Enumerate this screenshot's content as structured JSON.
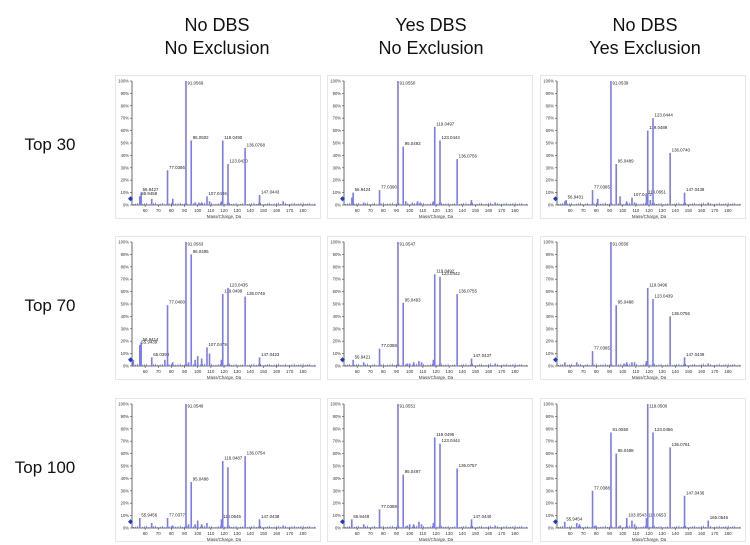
{
  "columns": [
    {
      "line1": "No DBS",
      "line2": "No Exclusion"
    },
    {
      "line1": "Yes DBS",
      "line2": "No Exclusion"
    },
    {
      "line1": "No DBS",
      "line2": "Yes Exclusion"
    }
  ],
  "rows": [
    {
      "label": "Top 30"
    },
    {
      "label": "Top 70"
    },
    {
      "label": "Top 100"
    }
  ],
  "colors": {
    "peak": "#7b7bf0",
    "axis": "#444444",
    "marker": "#1a3cc8"
  },
  "chart_data": [
    {
      "type": "bar",
      "row": "Top 30",
      "column": "No DBS / No Exclusion",
      "xlabel": "Mass/Charge, Da",
      "ylabel": "",
      "xlim": [
        50,
        190
      ],
      "ylim": [
        0,
        100
      ],
      "xticks": [
        60,
        70,
        80,
        90,
        100,
        110,
        120,
        130,
        140,
        150,
        160,
        170,
        180
      ],
      "yticks": [
        "0%",
        "10%",
        "20%",
        "30%",
        "40%",
        "50%",
        "60%",
        "70%",
        "80%",
        "90%",
        "100%"
      ],
      "peaks": [
        {
          "mz": 56.9427,
          "intensity": 10,
          "label": "56.9427"
        },
        {
          "mz": 55.9458,
          "intensity": 7,
          "label": "55.9458"
        },
        {
          "mz": 65.0,
          "intensity": 5
        },
        {
          "mz": 77.0386,
          "intensity": 28,
          "label": "77.0386"
        },
        {
          "mz": 81.0,
          "intensity": 5
        },
        {
          "mz": 91.0569,
          "intensity": 100,
          "label": "91.0569"
        },
        {
          "mz": 95.0502,
          "intensity": 52,
          "label": "95.0502"
        },
        {
          "mz": 98,
          "intensity": 2
        },
        {
          "mz": 101,
          "intensity": 2
        },
        {
          "mz": 103,
          "intensity": 2
        },
        {
          "mz": 107.0486,
          "intensity": 7,
          "label": "107.0486"
        },
        {
          "mz": 109,
          "intensity": 3
        },
        {
          "mz": 118,
          "intensity": 3
        },
        {
          "mz": 119.049,
          "intensity": 52,
          "label": "119.0490"
        },
        {
          "mz": 123.043,
          "intensity": 33,
          "label": "123.0430"
        },
        {
          "mz": 136.0768,
          "intensity": 46,
          "label": "136.0768"
        },
        {
          "mz": 147.0443,
          "intensity": 8,
          "label": "147.0443"
        },
        {
          "mz": 165,
          "intensity": 3
        }
      ]
    },
    {
      "type": "bar",
      "row": "Top 30",
      "column": "Yes DBS / No Exclusion",
      "xlabel": "Mass/Charge, Da",
      "ylabel": "",
      "xlim": [
        50,
        190
      ],
      "ylim": [
        0,
        100
      ],
      "xticks": [
        60,
        70,
        80,
        90,
        100,
        110,
        120,
        130,
        140,
        150,
        160,
        170,
        180
      ],
      "yticks": [
        "0%",
        "10%",
        "20%",
        "30%",
        "40%",
        "50%",
        "60%",
        "70%",
        "80%",
        "90%",
        "100%"
      ],
      "peaks": [
        {
          "mz": 56.9424,
          "intensity": 10,
          "label": "56.9424"
        },
        {
          "mz": 56,
          "intensity": 6
        },
        {
          "mz": 65,
          "intensity": 2
        },
        {
          "mz": 77.039,
          "intensity": 12,
          "label": "77.0390"
        },
        {
          "mz": 91.055,
          "intensity": 100,
          "label": "91.0550"
        },
        {
          "mz": 95.0493,
          "intensity": 47,
          "label": "95.0493"
        },
        {
          "mz": 97,
          "intensity": 3
        },
        {
          "mz": 102,
          "intensity": 2
        },
        {
          "mz": 106,
          "intensity": 3
        },
        {
          "mz": 108,
          "intensity": 2
        },
        {
          "mz": 118,
          "intensity": 3
        },
        {
          "mz": 119.0497,
          "intensity": 63,
          "label": "119.0497"
        },
        {
          "mz": 123.0444,
          "intensity": 52,
          "label": "123.0444"
        },
        {
          "mz": 136.0756,
          "intensity": 37,
          "label": "136.0756"
        },
        {
          "mz": 147,
          "intensity": 4
        },
        {
          "mz": 165,
          "intensity": 2
        }
      ]
    },
    {
      "type": "bar",
      "row": "Top 30",
      "column": "No DBS / Yes Exclusion",
      "xlabel": "Mass/Charge, Da",
      "ylabel": "",
      "xlim": [
        50,
        190
      ],
      "ylim": [
        0,
        100
      ],
      "xticks": [
        60,
        70,
        80,
        90,
        100,
        110,
        120,
        130,
        140,
        150,
        160,
        170,
        180
      ],
      "yticks": [
        "0%",
        "10%",
        "20%",
        "30%",
        "40%",
        "50%",
        "60%",
        "70%",
        "80%",
        "90%",
        "100%"
      ],
      "peaks": [
        {
          "mz": 56.9401,
          "intensity": 4,
          "label": "56.9401"
        },
        {
          "mz": 56,
          "intensity": 3
        },
        {
          "mz": 77.0385,
          "intensity": 12,
          "label": "77.0385"
        },
        {
          "mz": 81,
          "intensity": 5
        },
        {
          "mz": 91.0539,
          "intensity": 100,
          "label": "91.0539"
        },
        {
          "mz": 95.0489,
          "intensity": 33,
          "label": "95.0489"
        },
        {
          "mz": 98,
          "intensity": 7
        },
        {
          "mz": 103,
          "intensity": 3
        },
        {
          "mz": 107.0472,
          "intensity": 6,
          "label": "107.0472"
        },
        {
          "mz": 109,
          "intensity": 2
        },
        {
          "mz": 118.0651,
          "intensity": 8,
          "label": "118.0651"
        },
        {
          "mz": 119.0489,
          "intensity": 60,
          "label": "119.0489"
        },
        {
          "mz": 121,
          "intensity": 4
        },
        {
          "mz": 123.0444,
          "intensity": 70,
          "label": "123.0444"
        },
        {
          "mz": 136.074,
          "intensity": 42,
          "label": "136.0740"
        },
        {
          "mz": 147.0438,
          "intensity": 10,
          "label": "147.0438"
        },
        {
          "mz": 165,
          "intensity": 2
        }
      ]
    },
    {
      "type": "bar",
      "row": "Top 70",
      "column": "No DBS / No Exclusion",
      "xlabel": "Mass/Charge, Da",
      "ylabel": "",
      "xlim": [
        50,
        190
      ],
      "ylim": [
        0,
        100
      ],
      "xticks": [
        60,
        70,
        80,
        90,
        100,
        110,
        120,
        130,
        140,
        150,
        160,
        170,
        180
      ],
      "yticks": [
        "0%",
        "10%",
        "20%",
        "30%",
        "40%",
        "50%",
        "60%",
        "70%",
        "80%",
        "90%",
        "100%"
      ],
      "peaks": [
        {
          "mz": 51,
          "intensity": 5
        },
        {
          "mz": 56.9414,
          "intensity": 19,
          "label": "56.9414"
        },
        {
          "mz": 55.9439,
          "intensity": 17,
          "label": "55.9439"
        },
        {
          "mz": 65.0393,
          "intensity": 7,
          "label": "65.0393"
        },
        {
          "mz": 75,
          "intensity": 5
        },
        {
          "mz": 77.04,
          "intensity": 49,
          "label": "77.0400"
        },
        {
          "mz": 81,
          "intensity": 3
        },
        {
          "mz": 91.0563,
          "intensity": 100,
          "label": "91.0563"
        },
        {
          "mz": 93,
          "intensity": 3
        },
        {
          "mz": 95.0495,
          "intensity": 90,
          "label": "95.0495"
        },
        {
          "mz": 98,
          "intensity": 5
        },
        {
          "mz": 100,
          "intensity": 8
        },
        {
          "mz": 103,
          "intensity": 6
        },
        {
          "mz": 107.0479,
          "intensity": 15,
          "label": "107.0479"
        },
        {
          "mz": 109,
          "intensity": 10
        },
        {
          "mz": 118,
          "intensity": 5
        },
        {
          "mz": 119.0499,
          "intensity": 58,
          "label": "119.0499"
        },
        {
          "mz": 123.0435,
          "intensity": 63,
          "label": "123.0435"
        },
        {
          "mz": 136.0749,
          "intensity": 56,
          "label": "136.0749"
        },
        {
          "mz": 147.0423,
          "intensity": 7,
          "label": "147.0423"
        }
      ]
    },
    {
      "type": "bar",
      "row": "Top 70",
      "column": "Yes DBS / No Exclusion",
      "xlabel": "Mass/Charge, Da",
      "ylabel": "",
      "xlim": [
        50,
        190
      ],
      "ylim": [
        0,
        100
      ],
      "xticks": [
        60,
        70,
        80,
        90,
        100,
        110,
        120,
        130,
        140,
        150,
        160,
        170,
        180
      ],
      "yticks": [
        "0%",
        "10%",
        "20%",
        "30%",
        "40%",
        "50%",
        "60%",
        "70%",
        "80%",
        "90%",
        "100%"
      ],
      "peaks": [
        {
          "mz": 56.9421,
          "intensity": 5,
          "label": "56.9421"
        },
        {
          "mz": 65,
          "intensity": 3
        },
        {
          "mz": 77.0388,
          "intensity": 14,
          "label": "77.0388"
        },
        {
          "mz": 91.0547,
          "intensity": 100,
          "label": "91.0547"
        },
        {
          "mz": 95.0493,
          "intensity": 51,
          "label": "95.0493"
        },
        {
          "mz": 98,
          "intensity": 2
        },
        {
          "mz": 100,
          "intensity": 2
        },
        {
          "mz": 103,
          "intensity": 3
        },
        {
          "mz": 107,
          "intensity": 4
        },
        {
          "mz": 109,
          "intensity": 3
        },
        {
          "mz": 118,
          "intensity": 5
        },
        {
          "mz": 119.0492,
          "intensity": 74,
          "label": "119.0492"
        },
        {
          "mz": 123.0442,
          "intensity": 72,
          "label": "123.0442"
        },
        {
          "mz": 136.0755,
          "intensity": 58,
          "label": "136.0755"
        },
        {
          "mz": 147.0437,
          "intensity": 6,
          "label": "147.0437"
        },
        {
          "mz": 165,
          "intensity": 2
        }
      ]
    },
    {
      "type": "bar",
      "row": "Top 70",
      "column": "No DBS / Yes Exclusion",
      "xlabel": "Mass/Charge, Da",
      "ylabel": "",
      "xlim": [
        50,
        190
      ],
      "ylim": [
        0,
        100
      ],
      "xticks": [
        60,
        70,
        80,
        90,
        100,
        110,
        120,
        130,
        140,
        150,
        160,
        170,
        180
      ],
      "yticks": [
        "0%",
        "10%",
        "20%",
        "30%",
        "40%",
        "50%",
        "60%",
        "70%",
        "80%",
        "90%",
        "100%"
      ],
      "peaks": [
        {
          "mz": 56,
          "intensity": 3
        },
        {
          "mz": 65,
          "intensity": 3
        },
        {
          "mz": 77.0385,
          "intensity": 12,
          "label": "77.0385"
        },
        {
          "mz": 91.0556,
          "intensity": 100,
          "label": "91.0556"
        },
        {
          "mz": 95.0488,
          "intensity": 49,
          "label": "95.0488"
        },
        {
          "mz": 101,
          "intensity": 2
        },
        {
          "mz": 103,
          "intensity": 3
        },
        {
          "mz": 107,
          "intensity": 3
        },
        {
          "mz": 109,
          "intensity": 3
        },
        {
          "mz": 118,
          "intensity": 4
        },
        {
          "mz": 119.0496,
          "intensity": 63,
          "label": "119.0496"
        },
        {
          "mz": 123.0439,
          "intensity": 54,
          "label": "123.0439"
        },
        {
          "mz": 136.0756,
          "intensity": 40,
          "label": "136.0756"
        },
        {
          "mz": 147.0439,
          "intensity": 7,
          "label": "147.0439"
        },
        {
          "mz": 165,
          "intensity": 2
        }
      ]
    },
    {
      "type": "bar",
      "row": "Top 100",
      "column": "No DBS / No Exclusion",
      "xlabel": "Mass/Charge, Da",
      "ylabel": "",
      "xlim": [
        50,
        190
      ],
      "ylim": [
        0,
        100
      ],
      "xticks": [
        60,
        70,
        80,
        90,
        100,
        110,
        120,
        130,
        140,
        150,
        160,
        170,
        180
      ],
      "yticks": [
        "0%",
        "10%",
        "20%",
        "30%",
        "40%",
        "50%",
        "60%",
        "70%",
        "80%",
        "90%",
        "100%"
      ],
      "peaks": [
        {
          "mz": 55.9456,
          "intensity": 8,
          "label": "55.9456"
        },
        {
          "mz": 65,
          "intensity": 4
        },
        {
          "mz": 77.0377,
          "intensity": 8,
          "label": "77.0377"
        },
        {
          "mz": 81,
          "intensity": 2
        },
        {
          "mz": 91.0546,
          "intensity": 100,
          "label": "91.0546"
        },
        {
          "mz": 93,
          "intensity": 3
        },
        {
          "mz": 95.0498,
          "intensity": 37,
          "label": "95.0498"
        },
        {
          "mz": 98,
          "intensity": 3
        },
        {
          "mz": 100,
          "intensity": 6
        },
        {
          "mz": 103,
          "intensity": 3
        },
        {
          "mz": 107,
          "intensity": 4
        },
        {
          "mz": 118.0645,
          "intensity": 7,
          "label": "118.0645"
        },
        {
          "mz": 119.0487,
          "intensity": 54,
          "label": "119.0487"
        },
        {
          "mz": 123,
          "intensity": 49
        },
        {
          "mz": 136.0754,
          "intensity": 58,
          "label": "136.0754"
        },
        {
          "mz": 147.0438,
          "intensity": 7,
          "label": "147.0438"
        },
        {
          "mz": 165,
          "intensity": 2
        }
      ]
    },
    {
      "type": "bar",
      "row": "Top 100",
      "column": "Yes DBS / No Exclusion",
      "xlabel": "Mass/Charge, Da",
      "ylabel": "",
      "xlim": [
        50,
        190
      ],
      "ylim": [
        0,
        100
      ],
      "xticks": [
        60,
        70,
        80,
        90,
        100,
        110,
        120,
        130,
        140,
        150,
        160,
        170,
        180
      ],
      "yticks": [
        "0%",
        "10%",
        "20%",
        "30%",
        "40%",
        "50%",
        "60%",
        "70%",
        "80%",
        "90%",
        "100%"
      ],
      "peaks": [
        {
          "mz": 55.9448,
          "intensity": 7,
          "label": "55.9448"
        },
        {
          "mz": 65,
          "intensity": 3
        },
        {
          "mz": 77.0388,
          "intensity": 15,
          "label": "77.0388"
        },
        {
          "mz": 91.0551,
          "intensity": 100,
          "label": "91.0551"
        },
        {
          "mz": 95.0497,
          "intensity": 43,
          "label": "95.0497"
        },
        {
          "mz": 98,
          "intensity": 2
        },
        {
          "mz": 100,
          "intensity": 3
        },
        {
          "mz": 103,
          "intensity": 3
        },
        {
          "mz": 107,
          "intensity": 5
        },
        {
          "mz": 109,
          "intensity": 3
        },
        {
          "mz": 118,
          "intensity": 4
        },
        {
          "mz": 119.0495,
          "intensity": 73,
          "label": "119.0495"
        },
        {
          "mz": 123.0444,
          "intensity": 68,
          "label": "123.0444"
        },
        {
          "mz": 136.0757,
          "intensity": 48,
          "label": "136.0757"
        },
        {
          "mz": 147.044,
          "intensity": 7,
          "label": "147.0440"
        },
        {
          "mz": 165,
          "intensity": 2
        }
      ]
    },
    {
      "type": "bar",
      "row": "Top 100",
      "column": "No DBS / Yes Exclusion",
      "xlabel": "Mass/Charge, Da",
      "ylabel": "",
      "xlim": [
        50,
        190
      ],
      "ylim": [
        0,
        100
      ],
      "xticks": [
        60,
        70,
        80,
        90,
        100,
        110,
        120,
        130,
        140,
        150,
        160,
        170,
        180
      ],
      "yticks": [
        "0%",
        "10%",
        "20%",
        "30%",
        "40%",
        "50%",
        "60%",
        "70%",
        "80%",
        "90%",
        "100%"
      ],
      "peaks": [
        {
          "mz": 55.9454,
          "intensity": 5,
          "label": "55.9454"
        },
        {
          "mz": 65,
          "intensity": 4
        },
        {
          "mz": 67,
          "intensity": 3
        },
        {
          "mz": 77.0388,
          "intensity": 30,
          "label": "77.0388"
        },
        {
          "mz": 79,
          "intensity": 2
        },
        {
          "mz": 91.055,
          "intensity": 77,
          "label": "91.0550"
        },
        {
          "mz": 95.0498,
          "intensity": 60,
          "label": "95.0498"
        },
        {
          "mz": 98,
          "intensity": 2
        },
        {
          "mz": 103.0543,
          "intensity": 8,
          "label": "103.0543"
        },
        {
          "mz": 107,
          "intensity": 6
        },
        {
          "mz": 109,
          "intensity": 3
        },
        {
          "mz": 118.0653,
          "intensity": 8,
          "label": "118.0653"
        },
        {
          "mz": 119.05,
          "intensity": 100,
          "label": "119.0500"
        },
        {
          "mz": 123.0456,
          "intensity": 77,
          "label": "123.0456"
        },
        {
          "mz": 136.0761,
          "intensity": 65,
          "label": "136.0761"
        },
        {
          "mz": 147.0436,
          "intensity": 26,
          "label": "147.0436"
        },
        {
          "mz": 165.0546,
          "intensity": 6,
          "label": "165.0546"
        }
      ]
    }
  ]
}
